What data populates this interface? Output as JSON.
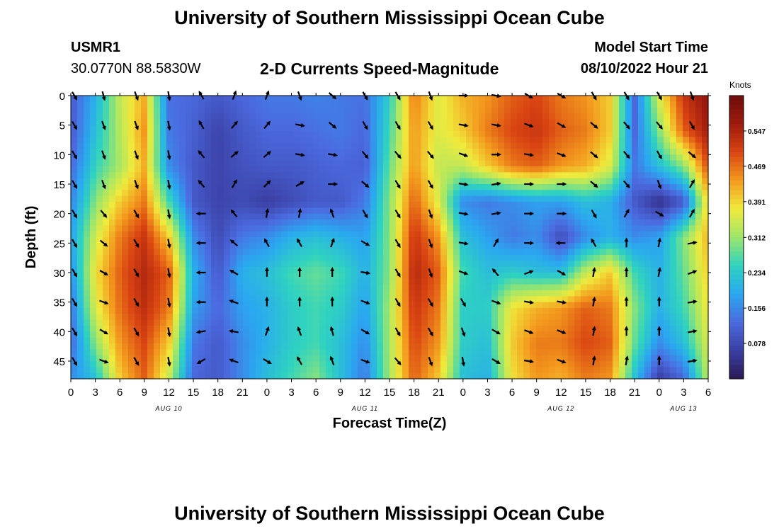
{
  "page": {
    "title": "University of Southern Mississippi Ocean Cube",
    "station": "USMR1",
    "location": "30.0770N  88.5830W",
    "subtitle": "2-D Currents Speed-Magnitude",
    "model_start_label": "Model Start Time",
    "model_start_value": "08/10/2022 Hour 21",
    "footer_title": "University of Southern Mississippi Ocean Cube"
  },
  "colors": {
    "scale": [
      "#2a1a55",
      "#3b3fa3",
      "#4b6be0",
      "#2aa8f0",
      "#2fd3c0",
      "#9ee66a",
      "#f0ea3c",
      "#f39a1e",
      "#d94412",
      "#9e1a0e",
      "#6e0d0b"
    ],
    "arrow": "#000000"
  },
  "chart_data": {
    "type": "heatmap",
    "title": "2-D Currents Speed-Magnitude",
    "xlabel": "Forecast Time(Z)",
    "ylabel": "Depth (ft)",
    "x_ticks": [
      "0",
      "3",
      "6",
      "9",
      "12",
      "15",
      "18",
      "21",
      "0",
      "3",
      "6",
      "9",
      "12",
      "15",
      "18",
      "21",
      "0",
      "3",
      "6",
      "9",
      "12",
      "15",
      "18",
      "21",
      "0",
      "3",
      "6"
    ],
    "date_labels": [
      {
        "text": "AUG 10",
        "tick_index": 4
      },
      {
        "text": "AUG 11",
        "tick_index": 12
      },
      {
        "text": "AUG 12",
        "tick_index": 20
      },
      {
        "text": "AUG 13",
        "tick_index": 25
      }
    ],
    "x_range_hours": [
      0,
      78
    ],
    "y_ticks": [
      0,
      5,
      10,
      15,
      20,
      25,
      30,
      35,
      40,
      45
    ],
    "ylim": [
      0,
      48
    ],
    "colorbar": {
      "title": "Knots",
      "labels": [
        "0.547",
        "0.469",
        "0.391",
        "0.312",
        "0.234",
        "0.156",
        "0.078"
      ],
      "range": [
        0,
        0.625
      ]
    },
    "speed_kts_by_column": {
      "hours": [
        0,
        3,
        6,
        9,
        12,
        15,
        18,
        21,
        24,
        27,
        30,
        33,
        36,
        39,
        42,
        45,
        48,
        51,
        54,
        57,
        60,
        63,
        66,
        69,
        72,
        75,
        78
      ],
      "depths_ft": [
        0,
        6,
        12,
        18,
        24,
        30,
        36,
        42,
        48
      ],
      "rows": [
        [
          0.1,
          0.1,
          0.12,
          0.15,
          0.18,
          0.16,
          0.13,
          0.12,
          0.16
        ],
        [
          0.2,
          0.22,
          0.25,
          0.3,
          0.35,
          0.38,
          0.36,
          0.3,
          0.22
        ],
        [
          0.34,
          0.33,
          0.32,
          0.4,
          0.46,
          0.48,
          0.47,
          0.44,
          0.4
        ],
        [
          0.42,
          0.44,
          0.42,
          0.46,
          0.52,
          0.54,
          0.53,
          0.5,
          0.48
        ],
        [
          0.13,
          0.14,
          0.16,
          0.26,
          0.4,
          0.48,
          0.46,
          0.4,
          0.34
        ],
        [
          0.12,
          0.11,
          0.1,
          0.1,
          0.16,
          0.2,
          0.18,
          0.14,
          0.12
        ],
        [
          0.1,
          0.07,
          0.07,
          0.07,
          0.08,
          0.1,
          0.12,
          0.1,
          0.1
        ],
        [
          0.12,
          0.1,
          0.09,
          0.08,
          0.14,
          0.2,
          0.18,
          0.16,
          0.16
        ],
        [
          0.14,
          0.12,
          0.1,
          0.06,
          0.16,
          0.22,
          0.2,
          0.2,
          0.22
        ],
        [
          0.14,
          0.12,
          0.1,
          0.08,
          0.2,
          0.26,
          0.24,
          0.24,
          0.26
        ],
        [
          0.15,
          0.13,
          0.11,
          0.1,
          0.22,
          0.28,
          0.26,
          0.26,
          0.3
        ],
        [
          0.14,
          0.14,
          0.12,
          0.1,
          0.2,
          0.26,
          0.24,
          0.22,
          0.22
        ],
        [
          0.13,
          0.12,
          0.11,
          0.14,
          0.18,
          0.2,
          0.18,
          0.16,
          0.14
        ],
        [
          0.24,
          0.26,
          0.28,
          0.3,
          0.3,
          0.3,
          0.32,
          0.32,
          0.32
        ],
        [
          0.46,
          0.44,
          0.44,
          0.48,
          0.52,
          0.54,
          0.52,
          0.5,
          0.48
        ],
        [
          0.36,
          0.36,
          0.34,
          0.36,
          0.44,
          0.48,
          0.46,
          0.44,
          0.4
        ],
        [
          0.42,
          0.4,
          0.34,
          0.16,
          0.22,
          0.26,
          0.24,
          0.24,
          0.22
        ],
        [
          0.44,
          0.46,
          0.4,
          0.14,
          0.18,
          0.22,
          0.24,
          0.22,
          0.2
        ],
        [
          0.48,
          0.5,
          0.46,
          0.16,
          0.14,
          0.24,
          0.38,
          0.4,
          0.38
        ],
        [
          0.5,
          0.52,
          0.48,
          0.18,
          0.16,
          0.22,
          0.42,
          0.46,
          0.44
        ],
        [
          0.46,
          0.48,
          0.44,
          0.18,
          0.08,
          0.22,
          0.44,
          0.46,
          0.42
        ],
        [
          0.44,
          0.46,
          0.42,
          0.22,
          0.16,
          0.34,
          0.48,
          0.5,
          0.46
        ],
        [
          0.4,
          0.4,
          0.36,
          0.2,
          0.2,
          0.4,
          0.46,
          0.48,
          0.44
        ],
        [
          0.12,
          0.12,
          0.14,
          0.1,
          0.16,
          0.26,
          0.3,
          0.28,
          0.22
        ],
        [
          0.36,
          0.3,
          0.22,
          0.04,
          0.18,
          0.2,
          0.2,
          0.16,
          0.06
        ],
        [
          0.52,
          0.48,
          0.3,
          0.1,
          0.3,
          0.28,
          0.26,
          0.22,
          0.12
        ],
        [
          0.58,
          0.56,
          0.5,
          0.4,
          0.42,
          0.4,
          0.38,
          0.36,
          0.34
        ]
      ]
    },
    "vectors": {
      "hours": [
        0,
        4,
        8,
        12,
        16,
        20,
        24,
        28,
        32,
        36,
        40,
        44,
        48,
        52,
        56,
        60,
        64,
        68,
        72,
        76
      ],
      "depths_ft": [
        0,
        5,
        10,
        15,
        20,
        25,
        30,
        35,
        40,
        45
      ],
      "direction_deg": [
        [
          150,
          150,
          150,
          150,
          150,
          150,
          150,
          150,
          150,
          150
        ],
        [
          165,
          160,
          160,
          160,
          140,
          130,
          120,
          110,
          120,
          110
        ],
        [
          160,
          160,
          160,
          160,
          150,
          150,
          150,
          150,
          150,
          150
        ],
        [
          170,
          170,
          170,
          170,
          170,
          170,
          170,
          170,
          170,
          170
        ],
        [
          330,
          330,
          320,
          320,
          270,
          270,
          270,
          270,
          260,
          240
        ],
        [
          20,
          40,
          50,
          30,
          320,
          310,
          300,
          290,
          280,
          290
        ],
        [
          20,
          40,
          50,
          45,
          10,
          330,
          0,
          0,
          20,
          120
        ],
        [
          160,
          100,
          100,
          60,
          10,
          330,
          0,
          0,
          340,
          330
        ],
        [
          130,
          130,
          100,
          90,
          340,
          20,
          0,
          0,
          345,
          340
        ],
        [
          150,
          150,
          140,
          130,
          150,
          120,
          100,
          110,
          120,
          110
        ],
        [
          150,
          150,
          140,
          150,
          150,
          150,
          150,
          150,
          150,
          140
        ],
        [
          160,
          150,
          140,
          150,
          160,
          160,
          160,
          150,
          150,
          160
        ],
        [
          90,
          100,
          110,
          100,
          100,
          100,
          110,
          150,
          160,
          170
        ],
        [
          100,
          100,
          90,
          80,
          80,
          30,
          320,
          110,
          120,
          120
        ],
        [
          120,
          110,
          100,
          90,
          90,
          90,
          70,
          100,
          110,
          100
        ],
        [
          120,
          120,
          110,
          90,
          90,
          270,
          120,
          100,
          110,
          110
        ],
        [
          150,
          130,
          130,
          130,
          150,
          330,
          10,
          10,
          10,
          10
        ],
        [
          150,
          140,
          140,
          140,
          30,
          0,
          0,
          0,
          0,
          10
        ],
        [
          150,
          140,
          150,
          160,
          120,
          10,
          10,
          0,
          0,
          0
        ],
        [
          160,
          150,
          130,
          30,
          30,
          80,
          70,
          80,
          80,
          80
        ]
      ]
    }
  }
}
